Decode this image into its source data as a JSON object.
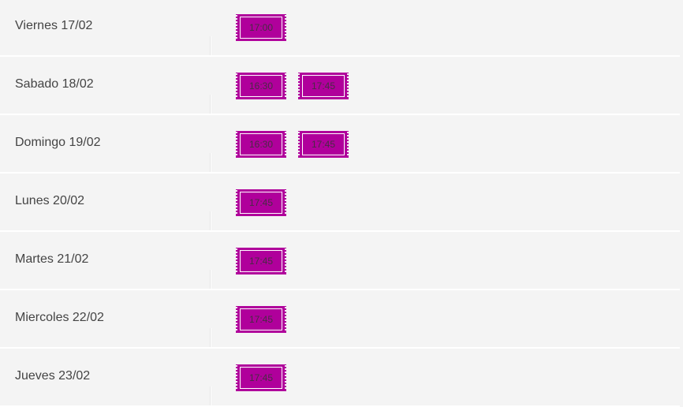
{
  "accent_color": "#b0009b",
  "schedule": [
    {
      "day": "Viernes 17/02",
      "times": [
        "17:00"
      ]
    },
    {
      "day": "Sabado 18/02",
      "times": [
        "16:30",
        "17:45"
      ]
    },
    {
      "day": "Domingo 19/02",
      "times": [
        "16:30",
        "17:45"
      ]
    },
    {
      "day": "Lunes 20/02",
      "times": [
        "17:45"
      ]
    },
    {
      "day": "Martes 21/02",
      "times": [
        "17:45"
      ]
    },
    {
      "day": "Miercoles 22/02",
      "times": [
        "17:45"
      ]
    },
    {
      "day": "Jueves 23/02",
      "times": [
        "17:45"
      ]
    }
  ]
}
